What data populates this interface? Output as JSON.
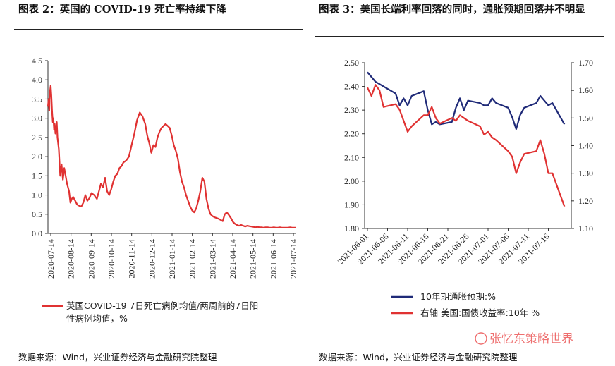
{
  "titles": {
    "left": "图表 2：英国的 COVID-19 死亡率持续下降",
    "right": "图表 3：美国长端利率回落的同时，通胀预期回落并不明显"
  },
  "sources": {
    "left": "数据来源：Wind，兴业证券经济与金融研究院整理",
    "right": "数据来源：Wind，兴业证券经济与金融研究院整理"
  },
  "watermark": "张忆东策略世界",
  "colors": {
    "red": "#e03232",
    "navy": "#1f2a78",
    "axis": "#333333"
  },
  "chart_data": [
    {
      "type": "line",
      "title": "图表 2：英国的 COVID-19 死亡率持续下降",
      "ylim": [
        0,
        4.5
      ],
      "yticks": [
        "0.0",
        "0.5",
        "1.0",
        "1.5",
        "2.0",
        "2.5",
        "3.0",
        "3.5",
        "4.0",
        "4.5"
      ],
      "x_ticks": [
        "2020-07-14",
        "2020-08-14",
        "2020-09-14",
        "2020-10-14",
        "2020-11-14",
        "2020-12-14",
        "2021-01-14",
        "2021-02-14",
        "2021-03-14",
        "2021-04-14",
        "2021-05-14",
        "2021-06-14",
        "2021-07-14"
      ],
      "legend": "英国COVID-19 7日死亡病例均值/两周前的7日阳性病例均值，%",
      "legend_line1": "英国COVID-19 7日死亡病例均值/两周前的7日阳",
      "legend_line2": "性病例均值，%",
      "series": [
        {
          "name": "英国COVID-19 7日死亡病例均值/两周前的7日阳性病例均值，%",
          "color": "#e03232",
          "x_day": [
            0,
            1,
            2,
            3,
            4,
            5,
            6,
            7,
            8,
            9,
            10,
            11,
            12,
            13,
            14,
            16,
            18,
            20,
            22,
            24,
            26,
            28,
            31,
            33,
            35,
            37,
            40,
            43,
            46,
            49,
            52,
            55,
            58,
            61,
            64,
            68,
            72,
            75,
            78,
            81,
            84,
            87,
            90,
            93,
            96,
            99,
            102,
            105,
            108,
            111,
            115,
            119,
            123,
            127,
            131,
            135,
            139,
            143,
            146,
            149,
            152,
            155,
            158,
            161,
            164,
            167,
            170,
            173,
            176,
            179,
            182,
            185,
            188,
            191,
            194,
            197,
            200,
            203,
            206,
            209,
            212,
            215,
            218,
            221,
            224,
            227,
            230,
            233,
            236,
            239,
            242,
            245,
            248,
            251,
            254,
            257,
            260,
            263,
            266,
            269,
            272,
            275,
            278,
            281,
            284,
            287,
            290,
            293,
            296,
            299,
            302,
            305,
            308,
            311,
            314,
            317,
            320,
            323,
            326,
            329,
            332,
            335,
            338,
            341,
            344,
            347,
            350,
            353,
            356,
            359,
            362,
            365
          ],
          "values": [
            3.3,
            3.5,
            3.2,
            3.7,
            3.85,
            3.6,
            3.2,
            2.9,
            3.0,
            2.7,
            2.85,
            2.6,
            2.75,
            2.9,
            2.5,
            2.2,
            1.5,
            1.8,
            1.4,
            1.7,
            1.5,
            1.3,
            1.1,
            0.8,
            0.9,
            0.95,
            0.85,
            0.75,
            0.72,
            0.7,
            0.8,
            1.0,
            0.85,
            0.92,
            1.05,
            1.0,
            0.9,
            1.1,
            1.3,
            1.2,
            1.45,
            1.1,
            1.0,
            1.15,
            1.35,
            1.5,
            1.55,
            1.7,
            1.75,
            1.85,
            1.9,
            2.0,
            2.3,
            2.6,
            2.95,
            3.15,
            3.05,
            2.85,
            2.55,
            2.35,
            2.1,
            2.3,
            2.25,
            2.5,
            2.65,
            2.75,
            2.8,
            2.85,
            2.8,
            2.75,
            2.55,
            2.3,
            2.15,
            1.95,
            1.6,
            1.35,
            1.2,
            1.0,
            0.85,
            0.7,
            0.6,
            0.55,
            0.65,
            0.85,
            1.1,
            1.45,
            1.35,
            0.9,
            0.65,
            0.5,
            0.45,
            0.42,
            0.4,
            0.38,
            0.35,
            0.32,
            0.5,
            0.55,
            0.48,
            0.4,
            0.3,
            0.25,
            0.22,
            0.2,
            0.22,
            0.2,
            0.18,
            0.2,
            0.19,
            0.18,
            0.17,
            0.16,
            0.17,
            0.16,
            0.16,
            0.15,
            0.16,
            0.16,
            0.15,
            0.15,
            0.16,
            0.15,
            0.15,
            0.16,
            0.15,
            0.15,
            0.15,
            0.15,
            0.16,
            0.15,
            0.15,
            0.15
          ]
        }
      ]
    },
    {
      "type": "line",
      "title": "图表 3：美国长端利率回落的同时，通胀预期回落并不明显",
      "ylim_left": [
        1.8,
        2.5
      ],
      "ylim_right": [
        1.1,
        1.7
      ],
      "yticks_left": [
        "1.80",
        "1.90",
        "2.00",
        "2.10",
        "2.20",
        "2.30",
        "2.40",
        "2.50"
      ],
      "yticks_right": [
        "1.10",
        "1.20",
        "1.30",
        "1.40",
        "1.50",
        "1.60",
        "1.70"
      ],
      "x_ticks": [
        "2021-06-01",
        "2021-06-06",
        "2021-06-11",
        "2021-06-16",
        "2021-06-21",
        "2021-06-26",
        "2021-07-01",
        "2021-07-06",
        "2021-07-11",
        "2021-07-16"
      ],
      "x_range_days": [
        0,
        50
      ],
      "series": [
        {
          "name": "10年期通胀预期:%",
          "legend": "10年期通胀预期:%",
          "color": "#1f2a78",
          "axis": "left",
          "x_day": [
            0,
            1,
            2,
            3,
            4,
            7,
            8,
            9,
            10,
            11,
            14,
            15,
            16,
            17,
            18,
            21,
            22,
            23,
            24,
            25,
            28,
            29,
            30,
            31,
            32,
            35,
            36,
            37,
            38,
            39,
            42,
            43,
            44,
            45,
            46,
            49
          ],
          "values": [
            2.46,
            2.44,
            2.42,
            2.41,
            2.4,
            2.37,
            2.32,
            2.35,
            2.32,
            2.36,
            2.38,
            2.3,
            2.24,
            2.25,
            2.24,
            2.25,
            2.31,
            2.35,
            2.3,
            2.34,
            2.33,
            2.32,
            2.32,
            2.35,
            2.33,
            2.31,
            2.27,
            2.22,
            2.28,
            2.31,
            2.33,
            2.36,
            2.34,
            2.32,
            2.33,
            2.24
          ]
        },
        {
          "name": "右轴 美国:国债收益率:10年 %",
          "legend": "右轴 美国:国债收益率:10年 %",
          "color": "#e03232",
          "axis": "right",
          "x_day": [
            0,
            1,
            2,
            3,
            4,
            7,
            8,
            9,
            10,
            11,
            14,
            15,
            16,
            17,
            18,
            21,
            22,
            23,
            24,
            25,
            28,
            29,
            30,
            31,
            32,
            35,
            36,
            37,
            38,
            39,
            42,
            43,
            44,
            45,
            46,
            49
          ],
          "values": [
            1.61,
            1.58,
            1.62,
            1.6,
            1.54,
            1.55,
            1.53,
            1.49,
            1.45,
            1.47,
            1.51,
            1.51,
            1.54,
            1.5,
            1.48,
            1.5,
            1.49,
            1.51,
            1.5,
            1.49,
            1.47,
            1.44,
            1.45,
            1.43,
            1.42,
            1.38,
            1.36,
            1.3,
            1.34,
            1.37,
            1.38,
            1.42,
            1.37,
            1.3,
            1.3,
            1.18
          ]
        }
      ]
    }
  ]
}
